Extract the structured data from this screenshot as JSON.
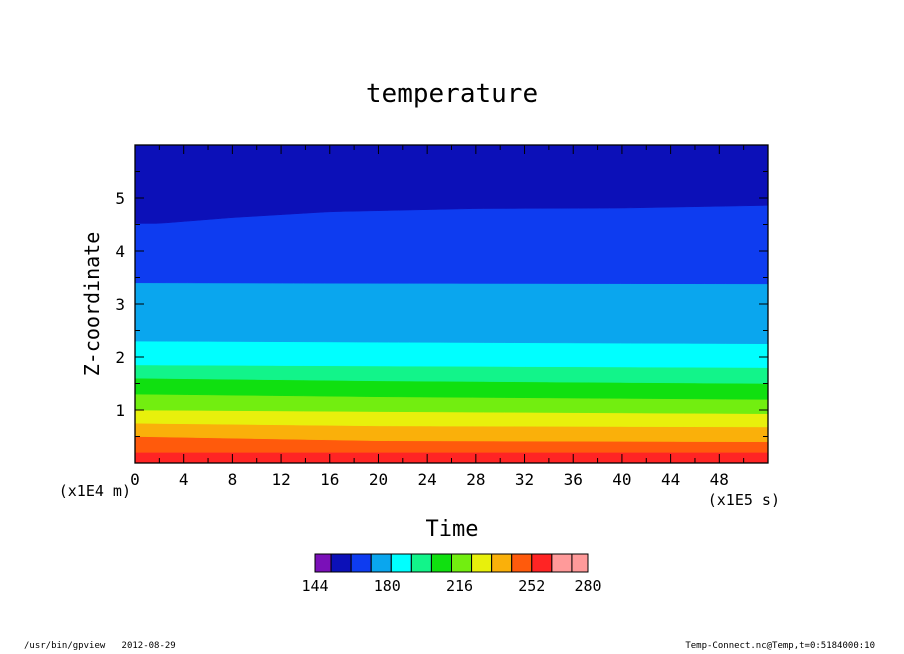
{
  "chart_data": {
    "type": "heatmap",
    "title": "temperature",
    "xlabel": "Time",
    "ylabel": "Z-coordinate",
    "x_unit_label": "(x1E5 s)",
    "y_unit_label": "(x1E4 m)",
    "x_origin_label": "0",
    "xlim": [
      0,
      52
    ],
    "ylim": [
      0,
      6
    ],
    "x_ticks": [
      "4",
      "8",
      "12",
      "16",
      "20",
      "24",
      "28",
      "32",
      "36",
      "40",
      "44",
      "48"
    ],
    "y_ticks": [
      "1",
      "2",
      "3",
      "4",
      "5"
    ],
    "grid": false,
    "levels": [
      144,
      152,
      162,
      172,
      182,
      192,
      202,
      212,
      222,
      232,
      242,
      252,
      262,
      272,
      280
    ],
    "colorbar_labels": [
      "144",
      "180",
      "216",
      "252",
      "280"
    ],
    "colors": [
      "#7a10b8",
      "#0c10b8",
      "#0e3cf0",
      "#0aa6ee",
      "#00ffff",
      "#12f48a",
      "#10e010",
      "#72ee10",
      "#e8f00c",
      "#fab00a",
      "#ff5a0c",
      "#ff2424",
      "#ff9a9a"
    ],
    "contours": [
      {
        "level": "lev11",
        "x": [
          0,
          52
        ],
        "y": [
          0.2,
          0.2
        ]
      },
      {
        "level": "lev10",
        "x": [
          0,
          20,
          52
        ],
        "y": [
          0.5,
          0.42,
          0.4
        ]
      },
      {
        "level": "lev9",
        "x": [
          0,
          20,
          52
        ],
        "y": [
          0.75,
          0.7,
          0.68
        ]
      },
      {
        "level": "lev8",
        "x": [
          0,
          20,
          52
        ],
        "y": [
          1.0,
          0.97,
          0.93
        ]
      },
      {
        "level": "lev7",
        "x": [
          0,
          20,
          52
        ],
        "y": [
          1.3,
          1.25,
          1.2
        ]
      },
      {
        "level": "lev6",
        "x": [
          0,
          20,
          52
        ],
        "y": [
          1.6,
          1.55,
          1.5
        ]
      },
      {
        "level": "lev5",
        "x": [
          0,
          20,
          52
        ],
        "y": [
          1.85,
          1.83,
          1.8
        ]
      },
      {
        "level": "lev4",
        "x": [
          0,
          20,
          52
        ],
        "y": [
          2.3,
          2.28,
          2.25
        ]
      },
      {
        "level": "lev3",
        "x": [
          0,
          20,
          52
        ],
        "y": [
          3.4,
          3.39,
          3.38
        ]
      },
      {
        "level": "lev2",
        "x": [
          0,
          2,
          8,
          16,
          28,
          40,
          52
        ],
        "y": [
          4.52,
          4.52,
          4.63,
          4.74,
          4.8,
          4.81,
          4.86
        ]
      }
    ]
  },
  "footer": {
    "left": "/usr/bin/gpview   2012-08-29",
    "right": "Temp-Connect.nc@Temp,t=0:5184000:10"
  }
}
